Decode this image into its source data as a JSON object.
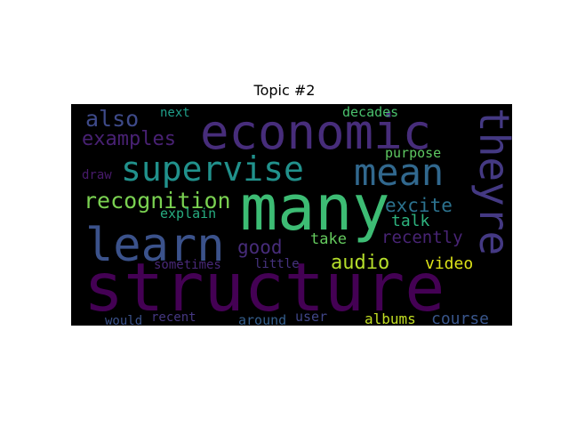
{
  "chart_data": {
    "type": "wordcloud",
    "title": "Topic #2",
    "background": "#000000",
    "words": [
      {
        "text": "structure",
        "color": "#440154"
      },
      {
        "text": "many",
        "color": "#3dbc74"
      },
      {
        "text": "economic",
        "color": "#472d7b"
      },
      {
        "text": "learn",
        "color": "#3b528b"
      },
      {
        "text": "supervise",
        "color": "#21918c"
      },
      {
        "text": "mean",
        "color": "#31688e"
      },
      {
        "text": "theyre",
        "color": "#443983"
      },
      {
        "text": "recognition",
        "color": "#7ad151"
      },
      {
        "text": "examples",
        "color": "#482173"
      },
      {
        "text": "also",
        "color": "#3e4a89"
      },
      {
        "text": "excite",
        "color": "#2c728e"
      },
      {
        "text": "audio",
        "color": "#b5de2b"
      },
      {
        "text": "good",
        "color": "#472c7a"
      },
      {
        "text": "recently",
        "color": "#482475"
      },
      {
        "text": "talk",
        "color": "#2db27d"
      },
      {
        "text": "video",
        "color": "#dde318"
      },
      {
        "text": "take",
        "color": "#65cb5e"
      },
      {
        "text": "course",
        "color": "#39568c"
      },
      {
        "text": "albums",
        "color": "#c2df23"
      },
      {
        "text": "user",
        "color": "#404688"
      },
      {
        "text": "purpose",
        "color": "#5ec962"
      },
      {
        "text": "decades",
        "color": "#4ac16d"
      },
      {
        "text": "explain",
        "color": "#27ad81"
      },
      {
        "text": "next",
        "color": "#1f9e89"
      },
      {
        "text": "draw",
        "color": "#481a6c"
      },
      {
        "text": "little",
        "color": "#46337f"
      },
      {
        "text": "sometimes",
        "color": "#482878"
      },
      {
        "text": "recent",
        "color": "#453781"
      },
      {
        "text": "around",
        "color": "#355f8d"
      },
      {
        "text": "would",
        "color": "#3b528b"
      }
    ]
  }
}
